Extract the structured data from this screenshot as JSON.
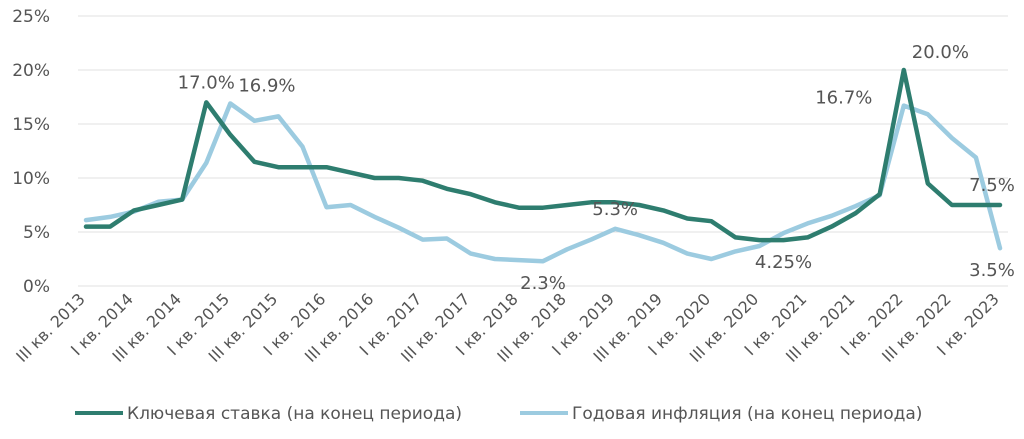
{
  "chart_data": {
    "type": "line",
    "title": "",
    "xlabel": "",
    "ylabel": "",
    "ylim": [
      0,
      25
    ],
    "y_ticks": [
      "0%",
      "5%",
      "10%",
      "15%",
      "20%",
      "25%"
    ],
    "x": [
      "III кв. 2013",
      "IV кв. 2013",
      "I кв. 2014",
      "II кв. 2014",
      "III кв. 2014",
      "IV кв. 2014",
      "I кв. 2015",
      "II кв. 2015",
      "III кв. 2015",
      "IV кв. 2015",
      "I кв. 2016",
      "II кв. 2016",
      "III кв. 2016",
      "IV кв. 2016",
      "I кв. 2017",
      "II кв. 2017",
      "III кв. 2017",
      "IV кв. 2017",
      "I кв. 2018",
      "II кв. 2018",
      "III кв. 2018",
      "IV кв. 2018",
      "I кв. 2019",
      "II кв. 2019",
      "III кв. 2019",
      "IV кв. 2019",
      "I кв. 2020",
      "II кв. 2020",
      "III кв. 2020",
      "IV кв. 2020",
      "I кв. 2021",
      "II кв. 2021",
      "III кв. 2021",
      "IV кв. 2021",
      "I кв. 2022",
      "II кв. 2022",
      "III кв. 2022",
      "IV кв. 2022",
      "I кв. 2023"
    ],
    "x_tick_labels": [
      "III кв. 2013",
      "I кв. 2014",
      "III кв. 2014",
      "I кв. 2015",
      "III кв. 2015",
      "I кв. 2016",
      "III кв. 2016",
      "I кв. 2017",
      "III кв. 2017",
      "I кв. 2018",
      "III кв. 2018",
      "I кв. 2019",
      "III кв. 2019",
      "I кв. 2020",
      "III кв. 2020",
      "I кв. 2021",
      "III кв. 2021",
      "I кв. 2022",
      "III кв. 2022",
      "I кв. 2023"
    ],
    "series": [
      {
        "name": "Ключевая ставка (на конец периода)",
        "color": "#2e7d6f",
        "values": [
          5.5,
          5.5,
          7.0,
          7.5,
          8.0,
          17.0,
          14.0,
          11.5,
          11.0,
          11.0,
          11.0,
          10.5,
          10.0,
          10.0,
          9.75,
          9.0,
          8.5,
          7.75,
          7.25,
          7.25,
          7.5,
          7.75,
          7.75,
          7.5,
          7.0,
          6.25,
          6.0,
          4.5,
          4.25,
          4.25,
          4.5,
          5.5,
          6.75,
          8.5,
          20.0,
          9.5,
          7.5,
          7.5,
          7.5
        ]
      },
      {
        "name": "Годовая инфляция (на конец периода)",
        "color": "#9ccbe0",
        "values": [
          6.1,
          6.4,
          6.9,
          7.8,
          8.0,
          11.4,
          16.9,
          15.3,
          15.7,
          12.9,
          7.3,
          7.5,
          6.4,
          5.4,
          4.3,
          4.4,
          3.0,
          2.5,
          2.4,
          2.3,
          3.4,
          4.3,
          5.3,
          4.7,
          4.0,
          3.0,
          2.5,
          3.2,
          3.7,
          4.9,
          5.8,
          6.5,
          7.4,
          8.4,
          16.7,
          15.9,
          13.7,
          11.9,
          3.5
        ]
      }
    ],
    "annotations": [
      {
        "text": "17.0%",
        "series": 0,
        "index": 5,
        "pos": "above"
      },
      {
        "text": "16.9%",
        "series": 1,
        "index": 6,
        "pos": "above-right"
      },
      {
        "text": "2.3%",
        "series": 1,
        "index": 19,
        "pos": "below"
      },
      {
        "text": "5.3%",
        "series": 1,
        "index": 22,
        "pos": "above"
      },
      {
        "text": "4.25%",
        "series": 0,
        "index": 29,
        "pos": "below"
      },
      {
        "text": "20.0%",
        "series": 0,
        "index": 34,
        "pos": "above-right"
      },
      {
        "text": "16.7%",
        "series": 1,
        "index": 34,
        "pos": "left"
      },
      {
        "text": "7.5%",
        "series": 0,
        "index": 38,
        "pos": "above"
      },
      {
        "text": "3.5%",
        "series": 1,
        "index": 38,
        "pos": "below"
      }
    ],
    "grid": true,
    "legend_position": "bottom"
  }
}
